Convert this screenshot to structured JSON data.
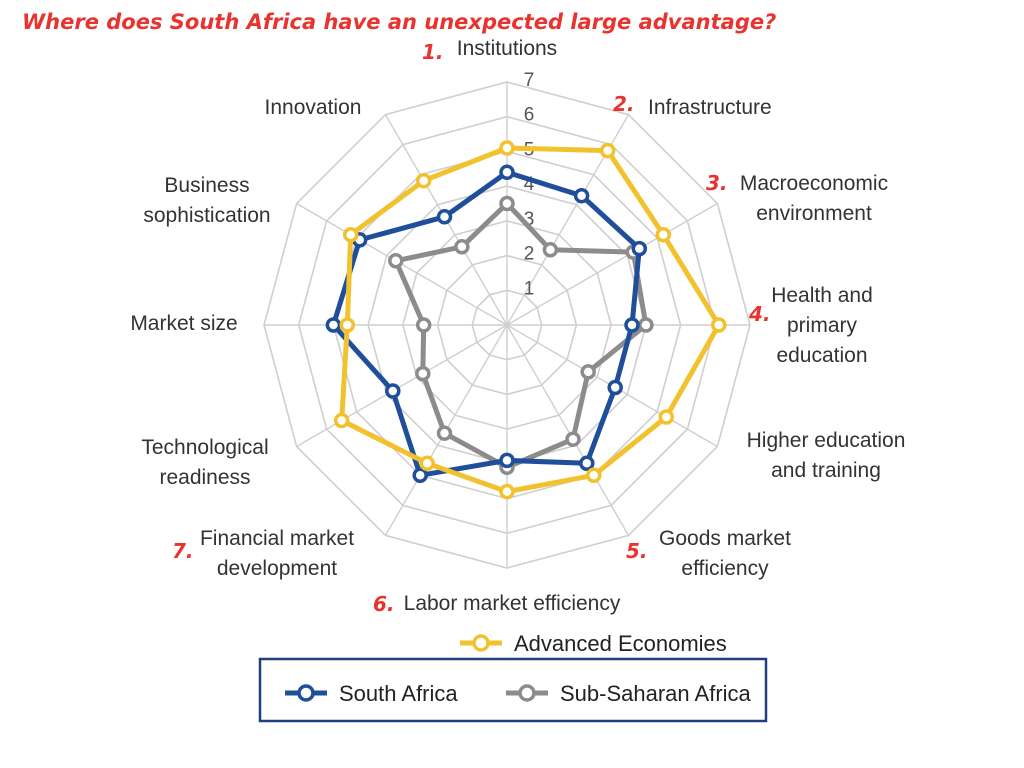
{
  "question": "Where does South Africa have an unexpected large advantage?",
  "chart_data": {
    "type": "radar",
    "axes": [
      [
        "Institutions"
      ],
      [
        "Infrastructure"
      ],
      [
        "Macroeconomic",
        "environment"
      ],
      [
        "Health and",
        "primary",
        "education"
      ],
      [
        "Higher education",
        "and training"
      ],
      [
        "Goods market",
        "efficiency"
      ],
      [
        "Labor market efficiency"
      ],
      [
        "Financial market",
        "development"
      ],
      [
        "Technological",
        "readiness"
      ],
      [
        "Market size"
      ],
      [
        "Business",
        "sophistication"
      ],
      [
        "Innovation"
      ]
    ],
    "rlim": [
      0,
      7
    ],
    "ticks": [
      "1",
      "2",
      "3",
      "4",
      "5",
      "6",
      "7"
    ],
    "series": [
      {
        "name": "Advanced Economies",
        "color": "#f2c12e",
        "values": [
          5.1,
          5.8,
          5.2,
          6.1,
          5.3,
          5.0,
          4.8,
          4.6,
          5.5,
          4.6,
          5.2,
          4.8
        ]
      },
      {
        "name": "South Africa",
        "color": "#1f4e9a",
        "values": [
          4.4,
          4.3,
          4.4,
          3.6,
          3.6,
          4.6,
          3.9,
          5.0,
          3.8,
          5.0,
          4.9,
          3.6
        ]
      },
      {
        "name": "Sub-Saharan Africa",
        "color": "#8c8c8c",
        "values": [
          3.5,
          2.5,
          4.2,
          4.0,
          2.7,
          3.8,
          4.1,
          3.6,
          2.8,
          2.4,
          3.7,
          2.6
        ]
      }
    ],
    "annotations": [
      {
        "axis": 0,
        "text": "1."
      },
      {
        "axis": 1,
        "text": "2."
      },
      {
        "axis": 2,
        "text": "3."
      },
      {
        "axis": 3,
        "text": "4."
      },
      {
        "axis": 5,
        "text": "5."
      },
      {
        "axis": 6,
        "text": "6."
      },
      {
        "axis": 7,
        "text": "7."
      }
    ],
    "legend": {
      "position": "bottom",
      "boxed": [
        "South Africa",
        "Sub-Saharan Africa"
      ],
      "above_box": [
        "Advanced Economies"
      ]
    },
    "grid": true
  }
}
